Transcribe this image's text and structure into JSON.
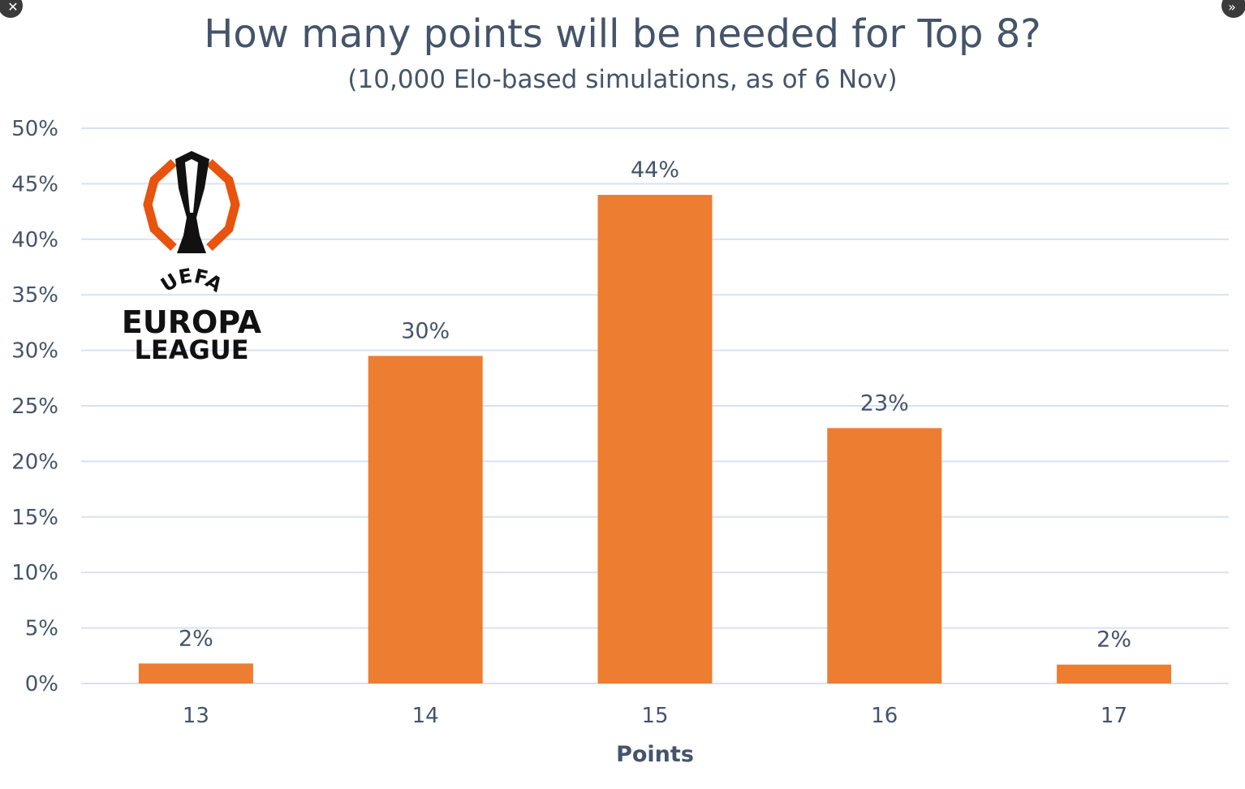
{
  "controls": {
    "close_glyph": "✕",
    "expand_glyph": "»"
  },
  "logo": {
    "line1": "UEFA",
    "line2": "EUROPA",
    "line3": "LEAGUE",
    "ring_color": "#e8530e"
  },
  "chart_data": {
    "type": "bar",
    "title": "How many points will be needed for Top 8?",
    "subtitle": "(10,000 Elo-based simulations, as of 6 Nov)",
    "xlabel": "Points",
    "ylabel": "",
    "categories": [
      "13",
      "14",
      "15",
      "16",
      "17"
    ],
    "values": [
      1.8,
      29.5,
      44,
      23,
      1.7
    ],
    "data_labels": [
      "2%",
      "30%",
      "44%",
      "23%",
      "2%"
    ],
    "ylim": [
      0,
      50
    ],
    "yticks": [
      "0%",
      "5%",
      "10%",
      "15%",
      "20%",
      "25%",
      "30%",
      "35%",
      "40%",
      "45%",
      "50%"
    ],
    "bar_color": "#ed7d31",
    "grid_color": "#d9e1f2",
    "grid": true,
    "legend": "none"
  }
}
